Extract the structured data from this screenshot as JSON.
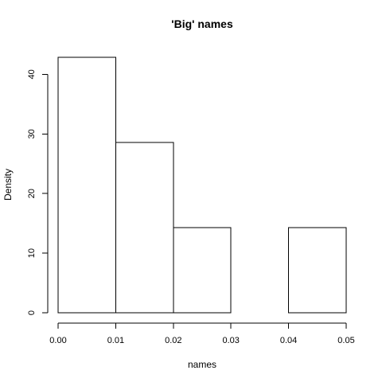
{
  "chart_data": {
    "type": "bar",
    "title": "'Big' names",
    "xlabel": "names",
    "ylabel": "Density",
    "bins": [
      {
        "x0": 0.0,
        "x1": 0.01,
        "density": 42.86
      },
      {
        "x0": 0.01,
        "x1": 0.02,
        "density": 28.57
      },
      {
        "x0": 0.02,
        "x1": 0.03,
        "density": 14.29
      },
      {
        "x0": 0.03,
        "x1": 0.04,
        "density": 0
      },
      {
        "x0": 0.04,
        "x1": 0.05,
        "density": 14.29
      }
    ],
    "xlim": [
      0.0,
      0.05
    ],
    "ylim": [
      0,
      42.86
    ],
    "xticks": [
      {
        "value": 0.0,
        "label": "0.00"
      },
      {
        "value": 0.01,
        "label": "0.01"
      },
      {
        "value": 0.02,
        "label": "0.02"
      },
      {
        "value": 0.03,
        "label": "0.03"
      },
      {
        "value": 0.04,
        "label": "0.04"
      },
      {
        "value": 0.05,
        "label": "0.05"
      }
    ],
    "yticks": [
      {
        "value": 0,
        "label": "0"
      },
      {
        "value": 10,
        "label": "10"
      },
      {
        "value": 20,
        "label": "20"
      },
      {
        "value": 30,
        "label": "30"
      },
      {
        "value": 40,
        "label": "40"
      }
    ],
    "grid": false,
    "bar_fill": "#ffffff",
    "bar_stroke": "#000000"
  }
}
